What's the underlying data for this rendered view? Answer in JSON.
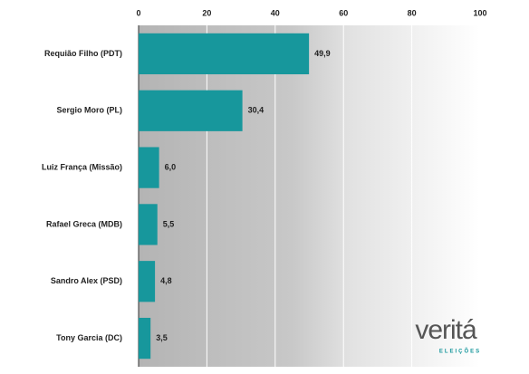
{
  "chart_data": {
    "type": "bar",
    "orientation": "horizontal",
    "categories": [
      "Requião Filho (PDT)",
      "Sergio Moro (PL)",
      "Luiz França (Missão)",
      "Rafael Greca (MDB)",
      "Sandro Alex (PSD)",
      "Tony Garcia (DC)"
    ],
    "values": [
      49.9,
      30.4,
      6.0,
      5.5,
      4.8,
      3.5
    ],
    "value_labels": [
      "49,9",
      "30,4",
      "6,0",
      "5,5",
      "4,8",
      "3,5"
    ],
    "color": "#17979c",
    "xlim": [
      0,
      100
    ],
    "xticks": [
      0,
      20,
      40,
      60,
      80,
      100
    ],
    "grid": true
  },
  "logo": {
    "name": "veritá",
    "tagline": "ELEIÇÕES"
  }
}
